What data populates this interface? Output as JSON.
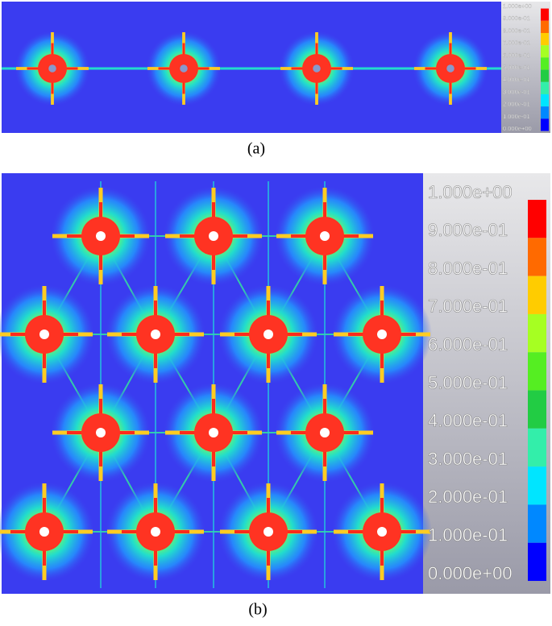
{
  "panels": [
    {
      "caption": "(a)",
      "legend_labels": [
        "1.000e+00",
        "9.000e-01",
        "8.000e-01",
        "7.000e-01",
        "6.000e-01",
        "5.000e-01",
        "4.000e-01",
        "3.000e-01",
        "2.000e-01",
        "1.000e-01",
        "0.000e+00"
      ]
    },
    {
      "caption": "(b)",
      "legend_labels": [
        "1.000e+00",
        "9.000e-01",
        "8.000e-01",
        "7.000e-01",
        "6.000e-01",
        "5.000e-01",
        "4.000e-01",
        "3.000e-01",
        "2.000e-01",
        "1.000e-01",
        "0.000e+00"
      ]
    }
  ],
  "legend_colors": [
    "#ff0000",
    "#ff6a00",
    "#ffcc00",
    "#a6ff22",
    "#55ee22",
    "#22cc44",
    "#33eeaa",
    "#00e5ff",
    "#0088ff",
    "#0000ff"
  ]
}
